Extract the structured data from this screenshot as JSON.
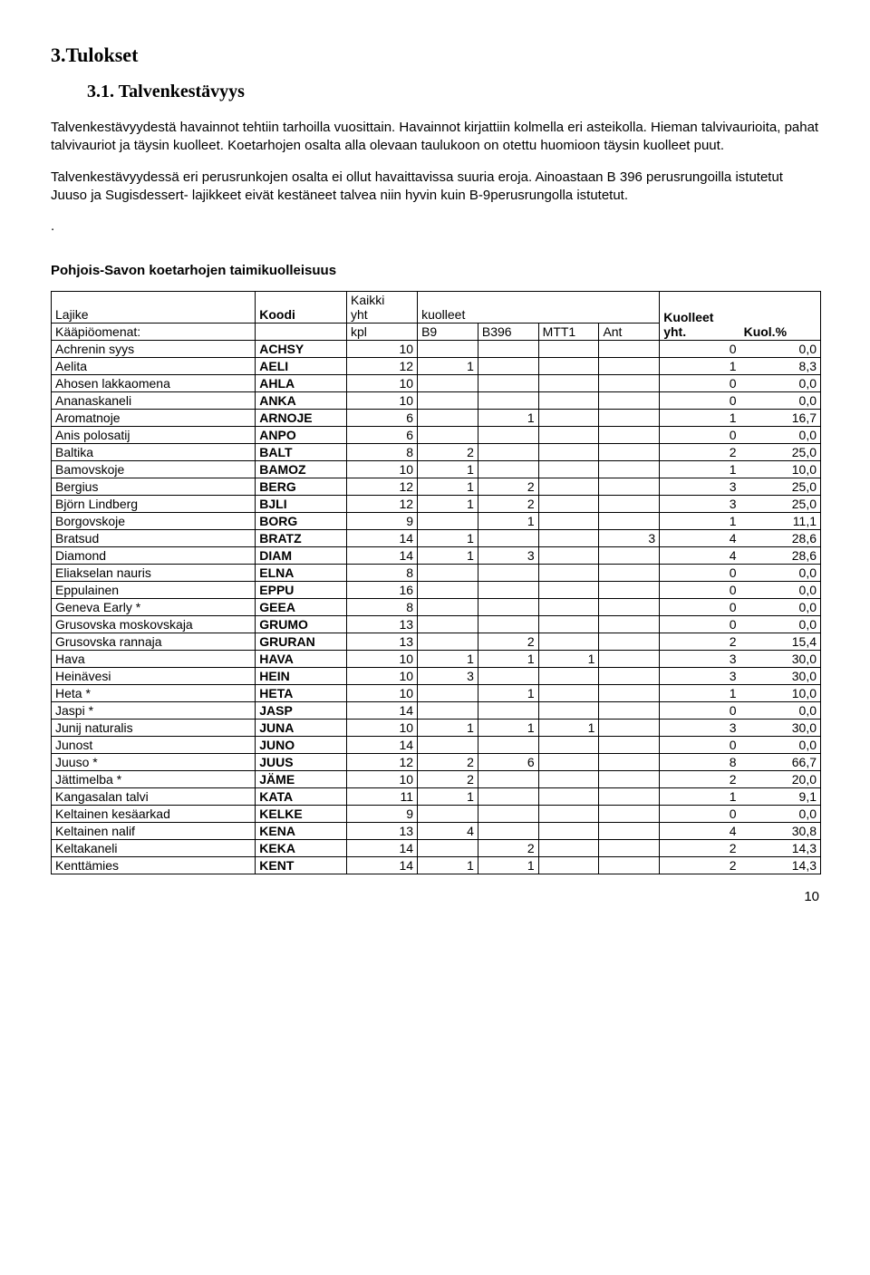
{
  "heading_main": "3.Tulokset",
  "heading_sub": "3.1. Talvenkestävyys",
  "para1": "Talvenkestävyydestä havainnot tehtiin tarhoilla vuosittain. Havainnot kirjattiin kolmella eri asteikolla. Hieman talvivaurioita, pahat talvivauriot ja täysin kuolleet. Koetarhojen osalta alla olevaan taulukoon on otettu huomioon täysin kuolleet puut.",
  "para2": "Talvenkestävyydessä eri perusrunkojen osalta ei ollut havaittavissa suuria eroja. Ainoastaan B 396 perusrungoilla istutetut Juuso ja Sugisdessert- lajikkeet eivät kestäneet talvea niin hyvin kuin B-9perusrungolla istutetut.",
  "para_dot": ".",
  "table_title": "Pohjois-Savon koetarhojen taimikuolleisuus",
  "headers": {
    "lajike": "Lajike",
    "koodi": "Koodi",
    "kaikki_line1": "Kaikki",
    "kaikki_line2": "yht",
    "kuolleet": "kuolleet",
    "kaapio_label": "Kääpiöomenat:",
    "kpl": "kpl",
    "b9": "B9",
    "b396": "B396",
    "mtt1": "MTT1",
    "ant": "Ant",
    "kuolleet_line1": "Kuolleet",
    "kuolleet_line2": "yht.",
    "kuolpct": "Kuol.%"
  },
  "rows": [
    {
      "name": "Achrenin syys",
      "code": "ACHSY",
      "kpl": "10",
      "b9": "",
      "b396": "",
      "mtt1": "",
      "ant": "",
      "ky": "0",
      "kp": "0,0"
    },
    {
      "name": "Aelita",
      "code": "AELI",
      "kpl": "12",
      "b9": "1",
      "b396": "",
      "mtt1": "",
      "ant": "",
      "ky": "1",
      "kp": "8,3"
    },
    {
      "name": "Ahosen lakkaomena",
      "code": "AHLA",
      "kpl": "10",
      "b9": "",
      "b396": "",
      "mtt1": "",
      "ant": "",
      "ky": "0",
      "kp": "0,0"
    },
    {
      "name": "Ananaskaneli",
      "code": "ANKA",
      "kpl": "10",
      "b9": "",
      "b396": "",
      "mtt1": "",
      "ant": "",
      "ky": "0",
      "kp": "0,0"
    },
    {
      "name": "Aromatnoje",
      "code": "ARNOJE",
      "kpl": "6",
      "b9": "",
      "b396": "1",
      "mtt1": "",
      "ant": "",
      "ky": "1",
      "kp": "16,7"
    },
    {
      "name": "Anis polosatij",
      "code": "ANPO",
      "kpl": "6",
      "b9": "",
      "b396": "",
      "mtt1": "",
      "ant": "",
      "ky": "0",
      "kp": "0,0"
    },
    {
      "name": "Baltika",
      "code": "BALT",
      "kpl": "8",
      "b9": "2",
      "b396": "",
      "mtt1": "",
      "ant": "",
      "ky": "2",
      "kp": "25,0"
    },
    {
      "name": "Bamovskoje",
      "code": "BAMOZ",
      "kpl": "10",
      "b9": "1",
      "b396": "",
      "mtt1": "",
      "ant": "",
      "ky": "1",
      "kp": "10,0"
    },
    {
      "name": "Bergius",
      "code": "BERG",
      "kpl": "12",
      "b9": "1",
      "b396": "2",
      "mtt1": "",
      "ant": "",
      "ky": "3",
      "kp": "25,0"
    },
    {
      "name": "Björn Lindberg",
      "code": "BJLI",
      "kpl": "12",
      "b9": "1",
      "b396": "2",
      "mtt1": "",
      "ant": "",
      "ky": "3",
      "kp": "25,0"
    },
    {
      "name": "Borgovskoje",
      "code": "BORG",
      "kpl": "9",
      "b9": "",
      "b396": "1",
      "mtt1": "",
      "ant": "",
      "ky": "1",
      "kp": "11,1"
    },
    {
      "name": "Bratsud",
      "code": "BRATZ",
      "kpl": "14",
      "b9": "1",
      "b396": "",
      "mtt1": "",
      "ant": "3",
      "ky": "4",
      "kp": "28,6"
    },
    {
      "name": "Diamond",
      "code": "DIAM",
      "kpl": "14",
      "b9": "1",
      "b396": "3",
      "mtt1": "",
      "ant": "",
      "ky": "4",
      "kp": "28,6"
    },
    {
      "name": "Eliakselan nauris",
      "code": "ELNA",
      "kpl": "8",
      "b9": "",
      "b396": "",
      "mtt1": "",
      "ant": "",
      "ky": "0",
      "kp": "0,0"
    },
    {
      "name": "Eppulainen",
      "code": "EPPU",
      "kpl": "16",
      "b9": "",
      "b396": "",
      "mtt1": "",
      "ant": "",
      "ky": "0",
      "kp": "0,0"
    },
    {
      "name": "Geneva Early *",
      "code": "GEEA",
      "kpl": "8",
      "b9": "",
      "b396": "",
      "mtt1": "",
      "ant": "",
      "ky": "0",
      "kp": "0,0"
    },
    {
      "name": "Grusovska moskovskaja",
      "code": "GRUMO",
      "kpl": "13",
      "b9": "",
      "b396": "",
      "mtt1": "",
      "ant": "",
      "ky": "0",
      "kp": "0,0"
    },
    {
      "name": "Grusovska rannaja",
      "code": "GRURAN",
      "kpl": "13",
      "b9": "",
      "b396": "2",
      "mtt1": "",
      "ant": "",
      "ky": "2",
      "kp": "15,4"
    },
    {
      "name": "Hava",
      "code": "HAVA",
      "kpl": "10",
      "b9": "1",
      "b396": "1",
      "mtt1": "1",
      "ant": "",
      "ky": "3",
      "kp": "30,0"
    },
    {
      "name": "Heinävesi",
      "code": "HEIN",
      "kpl": "10",
      "b9": "3",
      "b396": "",
      "mtt1": "",
      "ant": "",
      "ky": "3",
      "kp": "30,0"
    },
    {
      "name": "Heta *",
      "code": "HETA",
      "kpl": "10",
      "b9": "",
      "b396": "1",
      "mtt1": "",
      "ant": "",
      "ky": "1",
      "kp": "10,0"
    },
    {
      "name": "Jaspi *",
      "code": "JASP",
      "kpl": "14",
      "b9": "",
      "b396": "",
      "mtt1": "",
      "ant": "",
      "ky": "0",
      "kp": "0,0"
    },
    {
      "name": "Junij naturalis",
      "code": "JUNA",
      "kpl": "10",
      "b9": "1",
      "b396": "1",
      "mtt1": "1",
      "ant": "",
      "ky": "3",
      "kp": "30,0"
    },
    {
      "name": "Junost",
      "code": "JUNO",
      "kpl": "14",
      "b9": "",
      "b396": "",
      "mtt1": "",
      "ant": "",
      "ky": "0",
      "kp": "0,0"
    },
    {
      "name": "Juuso *",
      "code": "JUUS",
      "kpl": "12",
      "b9": "2",
      "b396": "6",
      "mtt1": "",
      "ant": "",
      "ky": "8",
      "kp": "66,7"
    },
    {
      "name": "Jättimelba *",
      "code": "JÄME",
      "kpl": "10",
      "b9": "2",
      "b396": "",
      "mtt1": "",
      "ant": "",
      "ky": "2",
      "kp": "20,0"
    },
    {
      "name": "Kangasalan talvi",
      "code": "KATA",
      "kpl": "11",
      "b9": "1",
      "b396": "",
      "mtt1": "",
      "ant": "",
      "ky": "1",
      "kp": "9,1"
    },
    {
      "name": "Keltainen kesäarkad",
      "code": "KELKE",
      "kpl": "9",
      "b9": "",
      "b396": "",
      "mtt1": "",
      "ant": "",
      "ky": "0",
      "kp": "0,0"
    },
    {
      "name": "Keltainen nalif",
      "code": "KENA",
      "kpl": "13",
      "b9": "4",
      "b396": "",
      "mtt1": "",
      "ant": "",
      "ky": "4",
      "kp": "30,8"
    },
    {
      "name": "Keltakaneli",
      "code": "KEKA",
      "kpl": "14",
      "b9": "",
      "b396": "2",
      "mtt1": "",
      "ant": "",
      "ky": "2",
      "kp": "14,3"
    },
    {
      "name": "Kenttämies",
      "code": "KENT",
      "kpl": "14",
      "b9": "1",
      "b396": "1",
      "mtt1": "",
      "ant": "",
      "ky": "2",
      "kp": "14,3"
    }
  ],
  "page_number": "10"
}
